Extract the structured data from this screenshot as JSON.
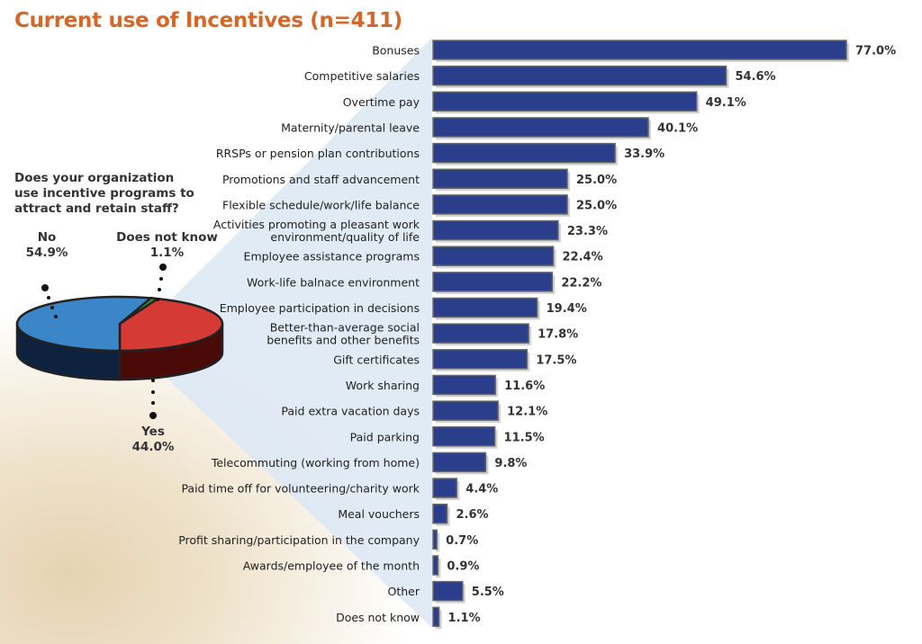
{
  "title": "Current use of Incentives (n=411)",
  "colors": {
    "bar": "#2b3e8c",
    "yes": "#d63a34",
    "no": "#3a86c8",
    "dnk": "#3a9a3a",
    "funnel": "#dce8f5"
  },
  "chart_data": [
    {
      "type": "bar",
      "orientation": "horizontal",
      "title": "Current use of Incentives (n=411)",
      "unit": "%",
      "categories": [
        "Bonuses",
        "Competitive salaries",
        "Overtime pay",
        "Maternity/parental leave",
        "RRSPs or pension plan contributions",
        "Promotions and staff advancement",
        "Flexible schedule/work/life balance",
        "Activities promoting a pleasant work\nenvironment/quality of life",
        "Employee assistance programs",
        "Work-life balnace environment",
        "Employee participation in decisions",
        "Better-than-average social\nbenefits and other benefits",
        "Gift certificates",
        "Work sharing",
        "Paid extra vacation days",
        "Paid parking",
        "Telecommuting (working from home)",
        "Paid time off for volunteering/charity work",
        "Meal vouchers",
        "Profit sharing/participation in the company",
        "Awards/employee of the month",
        "Other",
        "Does not know"
      ],
      "values": [
        77.0,
        54.6,
        49.1,
        40.1,
        33.9,
        25.0,
        25.0,
        23.3,
        22.4,
        22.2,
        19.4,
        17.8,
        17.5,
        11.6,
        12.1,
        11.5,
        9.8,
        4.4,
        2.6,
        0.7,
        0.9,
        5.5,
        1.1
      ],
      "labels": [
        "77.0%",
        "54.6%",
        "49.1%",
        "40.1%",
        "33.9%",
        "25.0%",
        "25.0%",
        "23.3%",
        "22.4%",
        "22.2%",
        "19.4%",
        "17.8%",
        "17.5%",
        "11.6%",
        "12.1%",
        "11.5%",
        "9.8%",
        "4.4%",
        "2.6%",
        "0.7%",
        "0.9%",
        "5.5%",
        "1.1%"
      ],
      "xlim": [
        0,
        80
      ]
    },
    {
      "type": "pie",
      "title": "Does your organization use incentive programs to attract and retain staff?",
      "slices": [
        {
          "name": "No",
          "value": 54.9,
          "label": "54.9%"
        },
        {
          "name": "Yes",
          "value": 44.0,
          "label": "44.0%"
        },
        {
          "name": "Does not know",
          "value": 1.1,
          "label": "1.1%"
        }
      ]
    }
  ]
}
